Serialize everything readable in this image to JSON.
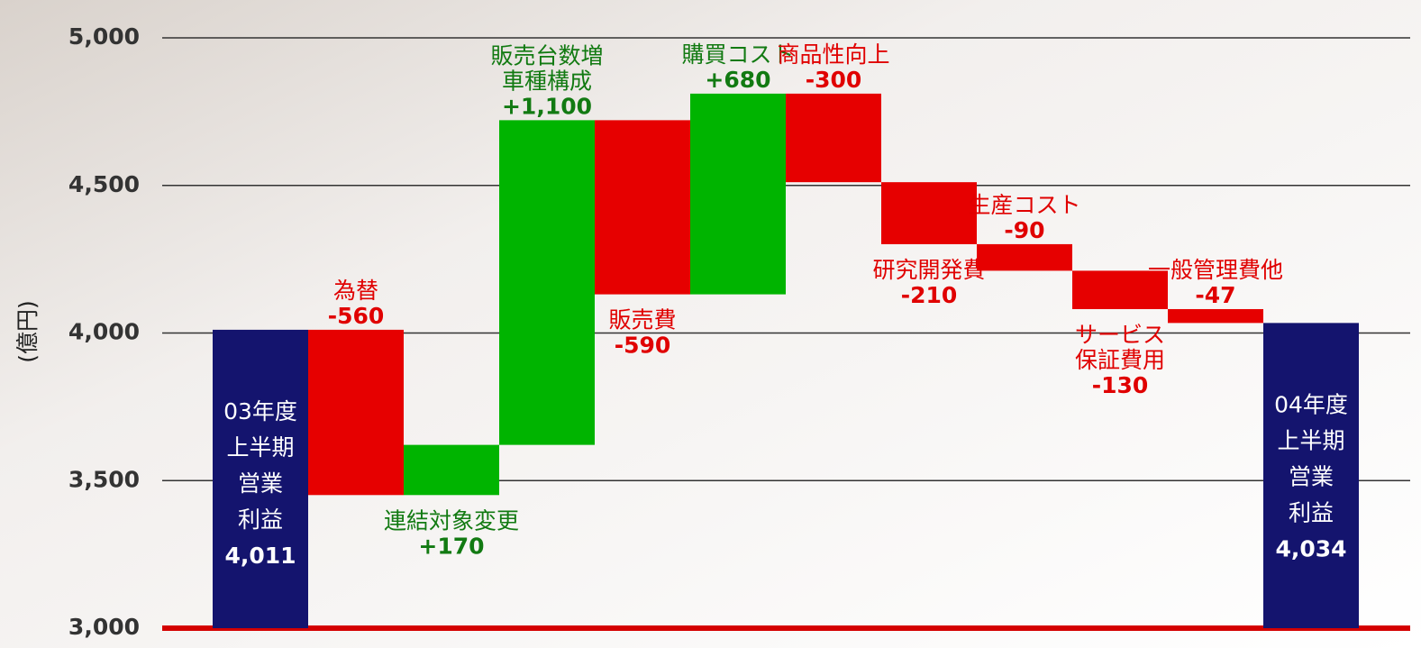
{
  "chart_data": {
    "type": "waterfall",
    "y_label": "(億円)",
    "categories": [
      [
        "03年度",
        "上半期",
        "営業",
        "利益"
      ],
      [
        "為替"
      ],
      [
        "連結対象変更"
      ],
      [
        "販売台数増",
        "車種構成"
      ],
      [
        "販売費"
      ],
      [
        "購買コスト"
      ],
      [
        "商品性向上"
      ],
      [
        "研究開発費"
      ],
      [
        "生産コスト"
      ],
      [
        "サービス",
        "保証費用"
      ],
      [
        "一般管理費他"
      ],
      [
        "04年度",
        "上半期",
        "営業",
        "利益"
      ]
    ],
    "values": [
      4011,
      -560,
      170,
      1100,
      -590,
      680,
      -300,
      -210,
      -90,
      -130,
      -47,
      4034
    ],
    "value_labels": [
      "4,011",
      "-560",
      "+170",
      "+1,100",
      "-590",
      "+680",
      "-300",
      "-210",
      "-90",
      "-130",
      "-47",
      "4,034"
    ],
    "total_color": "#14146e",
    "increase_color": "#00b400",
    "decrease_color": "#e60000",
    "increase_text_color": "#127a12",
    "decrease_text_color": "#e00000",
    "ylim": [
      3000,
      5000
    ],
    "yticks": [
      {
        "value": 3000,
        "label": "3,000"
      },
      {
        "value": 3500,
        "label": "3,500"
      },
      {
        "value": 4000,
        "label": "4,000"
      },
      {
        "value": 4500,
        "label": "4,500"
      },
      {
        "value": 5000,
        "label": "5,000"
      }
    ],
    "grid": true
  }
}
